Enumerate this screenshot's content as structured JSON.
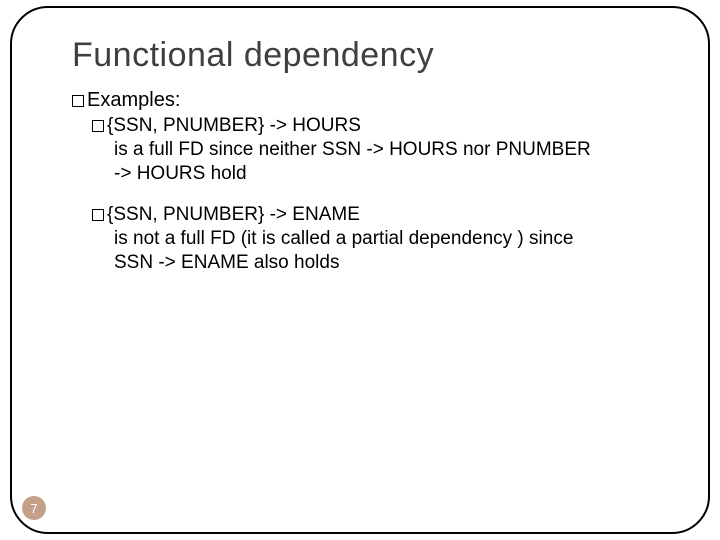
{
  "title": "Functional dependency",
  "level1_label": "Examples:",
  "ex1": {
    "line1": "{SSN, PNUMBER} -> HOURS",
    "line2": "is a full FD since neither SSN -> HOURS nor PNUMBER",
    "line3": "-> HOURS hold"
  },
  "ex2": {
    "line1": "{SSN, PNUMBER} -> ENAME",
    "line2": "is not  a full FD (it is called a partial dependency ) since",
    "line3": "SSN -> ENAME also holds"
  },
  "page_number": "7",
  "colors": {
    "title_color": "#3f3f3f",
    "text_color": "#000000",
    "border_color": "#000000",
    "badge_bg": "#c4a089",
    "badge_fg": "#ffffff",
    "background": "#ffffff"
  }
}
